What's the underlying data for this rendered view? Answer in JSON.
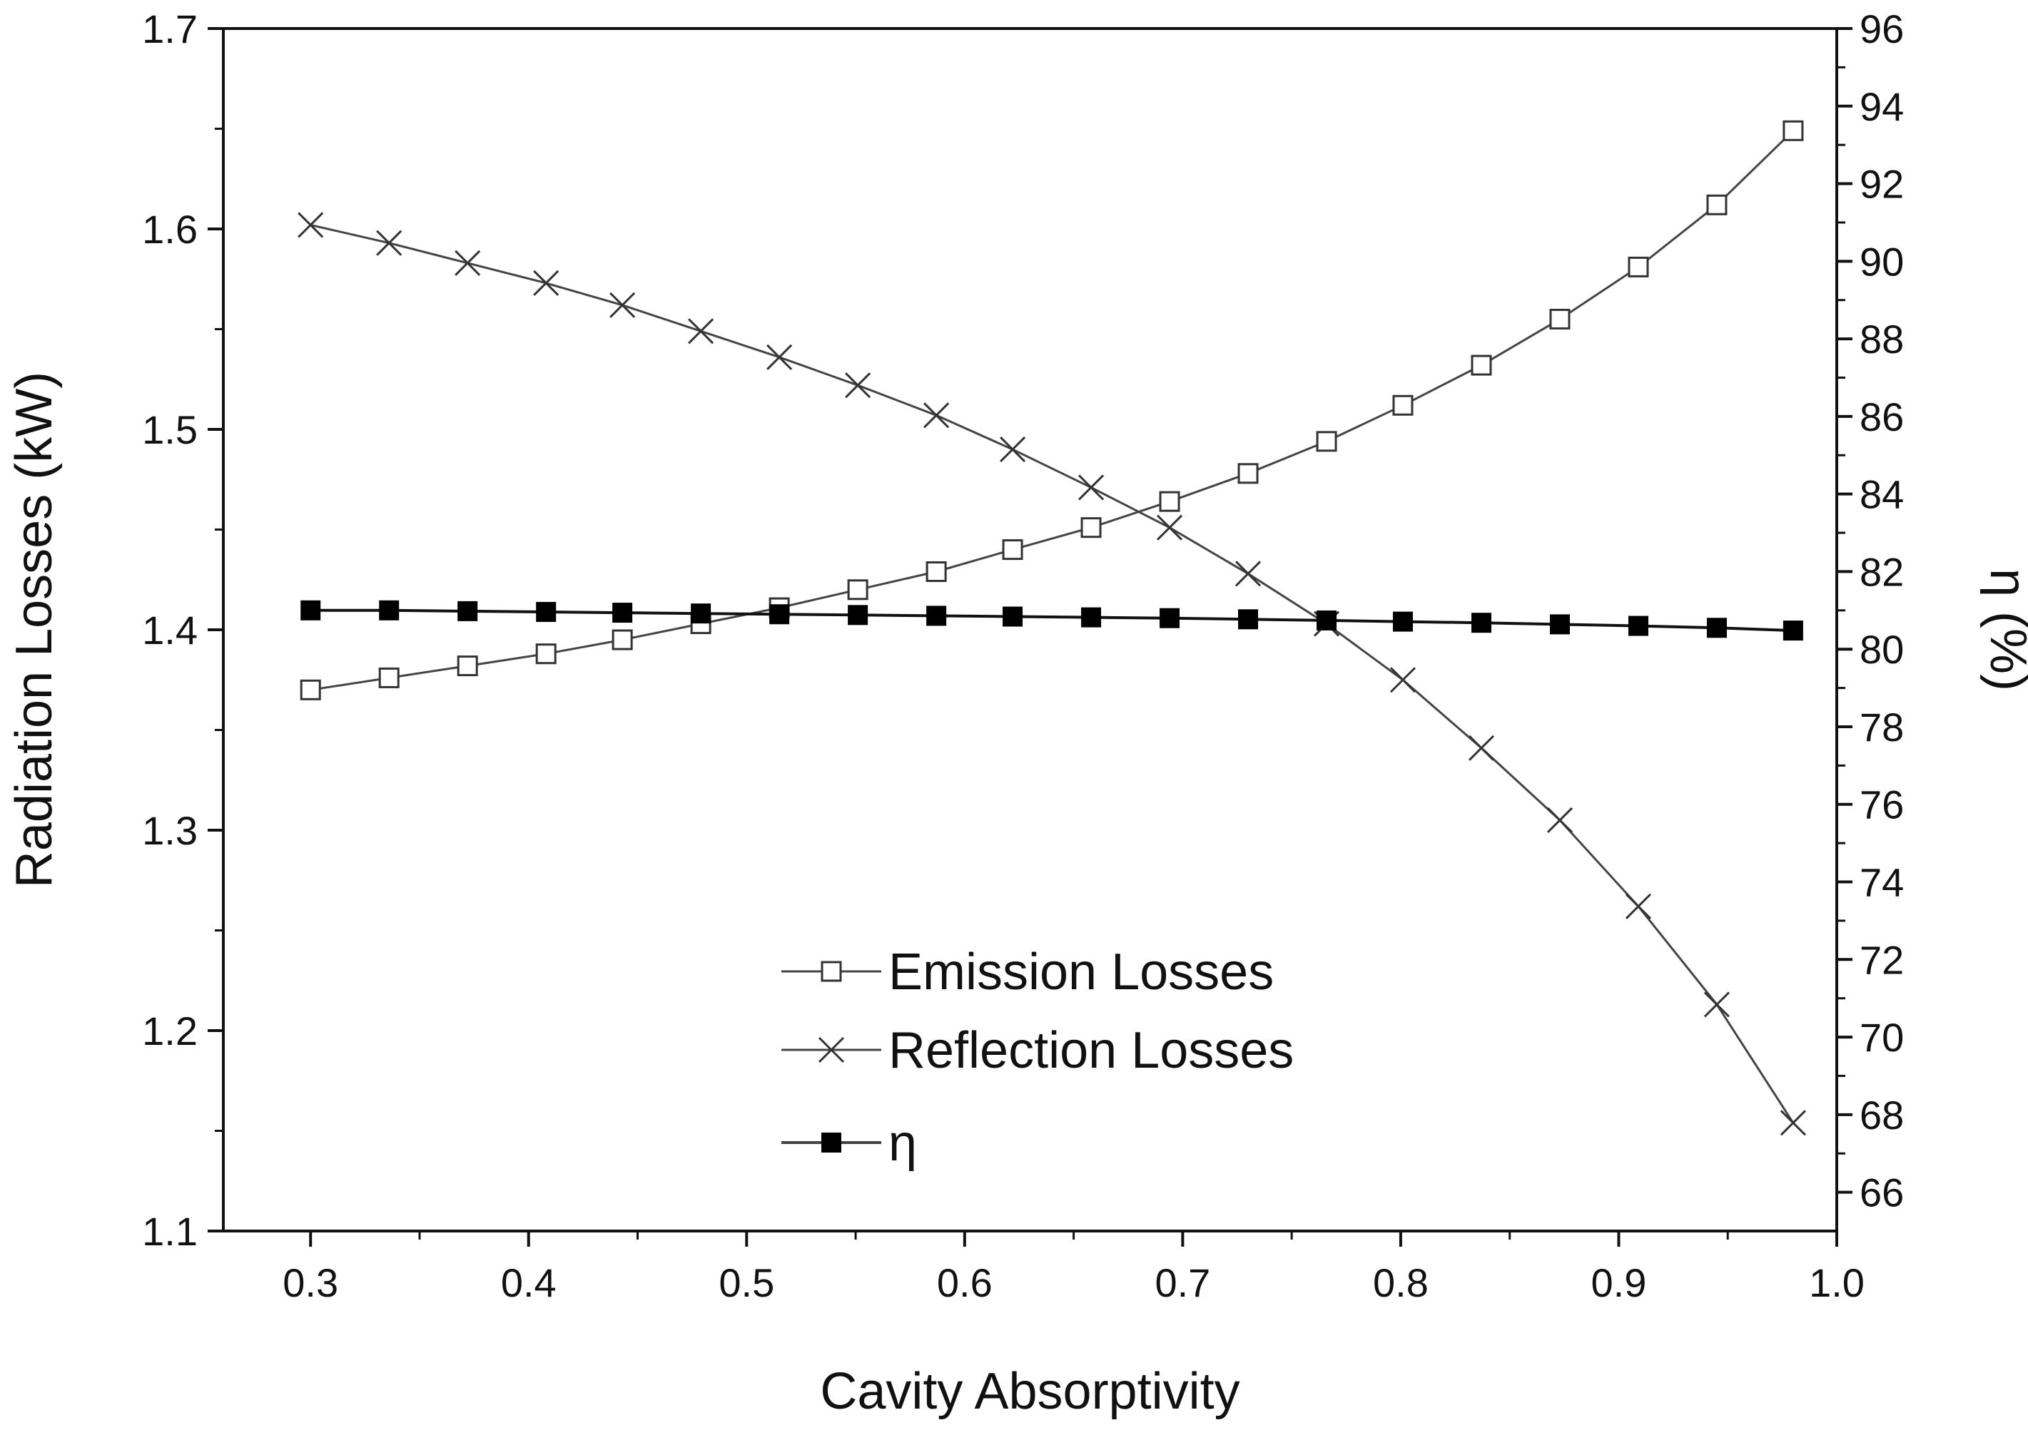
{
  "chart_data": {
    "type": "line",
    "title": "",
    "xlabel": "Cavity Absorptivity",
    "ylabel": "Radiation Losses (kW)",
    "y2label": "η (%)",
    "xlim": [
      0.26,
      1.0
    ],
    "ylim": [
      1.1,
      1.7
    ],
    "y2lim": [
      65,
      96
    ],
    "x_ticks": [
      "0.3",
      "0.4",
      "0.5",
      "0.6",
      "0.7",
      "0.8",
      "0.9",
      "1.0"
    ],
    "y_ticks": [
      "1.1",
      "1.2",
      "1.3",
      "1.4",
      "1.5",
      "1.6",
      "1.7"
    ],
    "y2_ticks": [
      "66",
      "68",
      "70",
      "72",
      "74",
      "76",
      "78",
      "80",
      "82",
      "84",
      "86",
      "88",
      "90",
      "92",
      "94",
      "96"
    ],
    "grid": false,
    "legend_position": "lower-center",
    "x": [
      0.3,
      0.336,
      0.372,
      0.408,
      0.443,
      0.479,
      0.515,
      0.551,
      0.587,
      0.622,
      0.658,
      0.694,
      0.73,
      0.766,
      0.801,
      0.837,
      0.873,
      0.909,
      0.945,
      0.98
    ],
    "series": [
      {
        "name": "Emission Losses",
        "axis": "left",
        "marker": "open-square",
        "values": [
          1.37,
          1.376,
          1.382,
          1.388,
          1.395,
          1.403,
          1.411,
          1.42,
          1.429,
          1.44,
          1.451,
          1.464,
          1.478,
          1.494,
          1.512,
          1.532,
          1.555,
          1.581,
          1.612,
          1.649
        ]
      },
      {
        "name": "Reflection Losses",
        "axis": "left",
        "marker": "cross",
        "values": [
          1.602,
          1.593,
          1.583,
          1.573,
          1.562,
          1.549,
          1.536,
          1.522,
          1.507,
          1.49,
          1.471,
          1.451,
          1.428,
          1.403,
          1.375,
          1.341,
          1.305,
          1.262,
          1.213,
          1.154
        ]
      },
      {
        "name": "η",
        "axis": "right",
        "marker": "filled-square",
        "values": [
          81.0,
          81.0,
          80.98,
          80.96,
          80.94,
          80.92,
          80.9,
          80.88,
          80.86,
          80.84,
          80.82,
          80.8,
          80.77,
          80.74,
          80.71,
          80.68,
          80.64,
          80.6,
          80.55,
          80.48
        ]
      }
    ]
  }
}
